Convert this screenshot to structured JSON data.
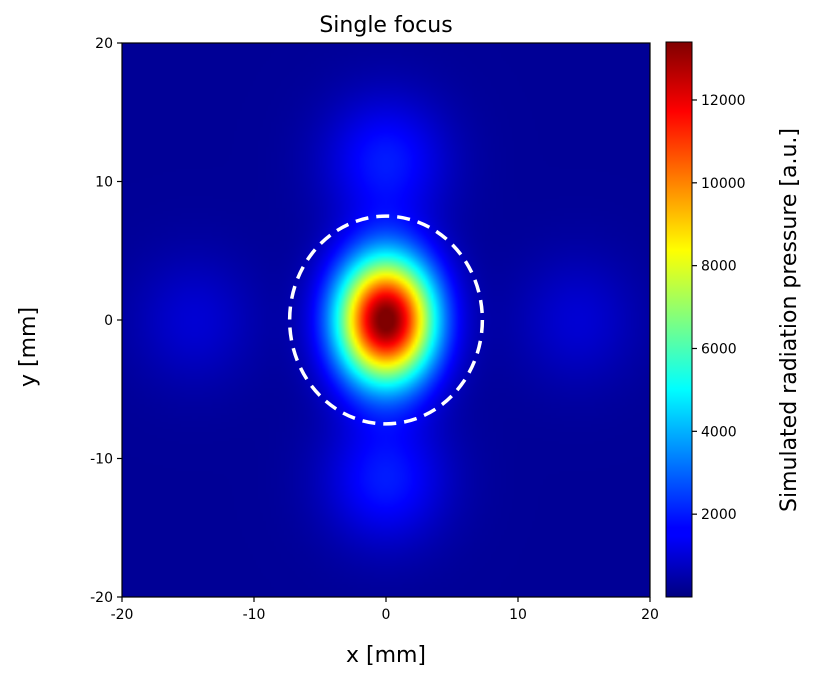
{
  "chart_data": {
    "type": "heatmap",
    "title": "Single focus",
    "xlabel": "x [mm]",
    "ylabel": "y [mm]",
    "xlim": [
      -20,
      20
    ],
    "ylim": [
      -20,
      20
    ],
    "x_ticks": [
      -20,
      -10,
      0,
      10,
      20
    ],
    "y_ticks": [
      -20,
      -10,
      0,
      10,
      20
    ],
    "x_tick_labels": [
      "-20",
      "-10",
      "0",
      "10",
      "20"
    ],
    "y_tick_labels": [
      "-20",
      "-10",
      "0",
      "10",
      "20"
    ],
    "colormap": "jet",
    "colorbar": {
      "label": "Simulated radiation pressure [a.u.]",
      "range": [
        0,
        13400
      ],
      "ticks": [
        2000,
        4000,
        6000,
        8000,
        10000,
        12000
      ],
      "tick_labels": [
        "2000",
        "4000",
        "6000",
        "8000",
        "10000",
        "12000"
      ]
    },
    "field": {
      "peak_center": [
        0,
        0
      ],
      "peak_value": 13400,
      "main_lobe_sigma_x_mm": 2.6,
      "main_lobe_sigma_y_mm": 3.2,
      "side_lobes": [
        {
          "center": [
            0,
            11.5
          ],
          "value": 1700
        },
        {
          "center": [
            0,
            -11.5
          ],
          "value": 1700
        },
        {
          "center": [
            14.5,
            0
          ],
          "value": 800
        },
        {
          "center": [
            -14.5,
            0
          ],
          "value": 800
        }
      ],
      "background_value": 300
    },
    "overlay": {
      "type": "dashed-circle",
      "center": [
        0,
        0
      ],
      "radius_x_mm": 7.3,
      "radius_y_mm": 7.5,
      "color": "#ffffff"
    }
  }
}
